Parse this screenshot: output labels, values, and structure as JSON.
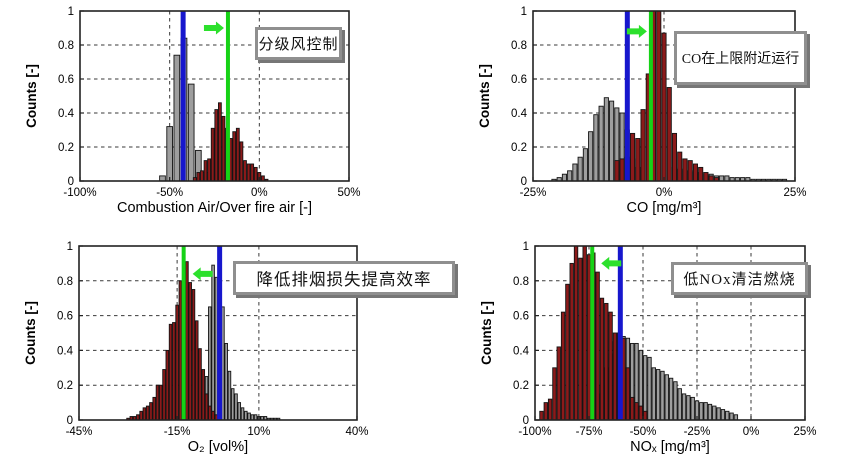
{
  "figure": {
    "background": "#ffffff",
    "description": "Four histograms comparing baseline and optimized boiler operation"
  },
  "colors": {
    "baseline_bar": "#9e9e9e",
    "optimized_bar": "#8c1a1a",
    "bar_edge": "#141414",
    "limit_line_blue": "#1717cd",
    "target_line_green": "#16d216",
    "arrow_green": "#2ce02c",
    "grid": "#3a3a3a",
    "axis": "#222222",
    "box_border": "#8f8f8f",
    "box_shadow": "#767676"
  },
  "chart_data": [
    {
      "id": "combustion-air",
      "type": "bar",
      "annotation": "分级风控制",
      "xlabel": "Combustion Air/Over fire air [-]",
      "ylabel": "Counts [-]",
      "xlim": [
        -100,
        50
      ],
      "ylim": [
        0,
        1
      ],
      "xticks": {
        "values": [
          -100,
          -50,
          0,
          50
        ],
        "labels": [
          "-100%",
          "-50%",
          "0%",
          "50%"
        ]
      },
      "yticks": {
        "values": [
          0,
          0.2,
          0.4,
          0.6,
          0.8,
          1
        ],
        "labels": [
          "0",
          "0.2",
          "0.4",
          "0.6",
          "0.8",
          "1"
        ]
      },
      "grid_x": [
        -50,
        0
      ],
      "grid_y": [
        0.2,
        0.4,
        0.6,
        0.8
      ],
      "lines": {
        "blue_x": -42.5,
        "green_x": -17.5
      },
      "arrow": {
        "direction": "right",
        "y_frac": 0.9
      },
      "series": [
        {
          "name": "baseline",
          "color_key": "baseline_bar",
          "bin_width": 4,
          "bars": [
            [
              -54,
              0.03
            ],
            [
              -50,
              0.32
            ],
            [
              -46,
              0.74
            ],
            [
              -42,
              0.84
            ],
            [
              -38,
              0.57
            ],
            [
              -34,
              0.18
            ],
            [
              -30,
              0.05
            ]
          ]
        },
        {
          "name": "optimized",
          "color_key": "optimized_bar",
          "bin_width": 2,
          "bars": [
            [
              -36,
              0.02
            ],
            [
              -34,
              0.05
            ],
            [
              -32,
              0.06
            ],
            [
              -30,
              0.12
            ],
            [
              -28,
              0.13
            ],
            [
              -26,
              0.31
            ],
            [
              -24,
              0.42
            ],
            [
              -22,
              0.46
            ],
            [
              -20,
              0.38
            ],
            [
              -18,
              0.31
            ],
            [
              -16,
              0.25
            ],
            [
              -14,
              0.29
            ],
            [
              -12,
              0.31
            ],
            [
              -10,
              0.23
            ],
            [
              -8,
              0.12
            ],
            [
              -6,
              0.1
            ],
            [
              -4,
              0.1
            ],
            [
              -2,
              0.08
            ],
            [
              0,
              0.05
            ],
            [
              2,
              0.03
            ],
            [
              4,
              0.01
            ]
          ]
        }
      ]
    },
    {
      "id": "co",
      "type": "bar",
      "annotation": "CO在上限附近运行",
      "xlabel": "CO [mg/m³]",
      "ylabel": "Counts [-]",
      "xlim": [
        -25,
        25
      ],
      "ylim": [
        0,
        1
      ],
      "xticks": {
        "values": [
          -25,
          0,
          25
        ],
        "labels": [
          "-25%",
          "0%",
          "25%"
        ]
      },
      "yticks": {
        "values": [
          0,
          0.2,
          0.4,
          0.6,
          0.8,
          1
        ],
        "labels": [
          "0",
          "0.2",
          "0.4",
          "0.6",
          "0.8",
          "1"
        ]
      },
      "grid_x": [
        0
      ],
      "grid_y": [
        0.2,
        0.4,
        0.6,
        0.8
      ],
      "lines": {
        "blue_x": -7,
        "green_x": -2.5
      },
      "arrow": {
        "direction": "right",
        "y_frac": 0.88
      },
      "series": [
        {
          "name": "baseline",
          "color_key": "baseline_bar",
          "bin_width": 1,
          "bars": [
            [
              -21,
              0.01
            ],
            [
              -20,
              0.02
            ],
            [
              -19,
              0.04
            ],
            [
              -18,
              0.06
            ],
            [
              -17,
              0.1
            ],
            [
              -16,
              0.14
            ],
            [
              -15,
              0.19
            ],
            [
              -14,
              0.29
            ],
            [
              -13,
              0.39
            ],
            [
              -12,
              0.44
            ],
            [
              -11,
              0.49
            ],
            [
              -10,
              0.47
            ],
            [
              -9,
              0.43
            ],
            [
              -8,
              0.4
            ],
            [
              -7,
              0.3
            ],
            [
              -6,
              0.13
            ],
            [
              -5,
              0.08
            ],
            [
              2,
              0.08
            ],
            [
              3,
              0.07
            ],
            [
              4,
              0.06
            ],
            [
              5,
              0.06
            ],
            [
              6,
              0.05
            ],
            [
              7,
              0.05
            ],
            [
              8,
              0.04
            ],
            [
              9,
              0.04
            ],
            [
              10,
              0.03
            ],
            [
              11,
              0.03
            ],
            [
              12,
              0.03
            ],
            [
              13,
              0.02
            ],
            [
              14,
              0.02
            ],
            [
              15,
              0.02
            ],
            [
              16,
              0.02
            ],
            [
              17,
              0.01
            ],
            [
              18,
              0.01
            ],
            [
              19,
              0.01
            ],
            [
              20,
              0.01
            ],
            [
              21,
              0.01
            ],
            [
              22,
              0.01
            ],
            [
              23,
              0.01
            ]
          ]
        },
        {
          "name": "optimized",
          "color_key": "optimized_bar",
          "bin_width": 1,
          "bars": [
            [
              -9,
              0.12
            ],
            [
              -8,
              0.13
            ],
            [
              -7,
              0.14
            ],
            [
              -6,
              0.28
            ],
            [
              -5,
              0.25
            ],
            [
              -4,
              0.42
            ],
            [
              -3,
              0.63
            ],
            [
              -2,
              1
            ],
            [
              -1,
              1
            ],
            [
              0,
              0.87
            ],
            [
              1,
              0.55
            ],
            [
              2,
              0.28
            ],
            [
              3,
              0.17
            ],
            [
              4,
              0.13
            ],
            [
              5,
              0.12
            ],
            [
              6,
              0.1
            ],
            [
              7,
              0.08
            ],
            [
              8,
              0.05
            ],
            [
              9,
              0.03
            ],
            [
              10,
              0.02
            ]
          ]
        }
      ]
    },
    {
      "id": "o2",
      "type": "bar",
      "annotation": "降低排烟损失提高效率",
      "xlabel": "O₂ [vol%]",
      "ylabel": "Counts [-]",
      "xlim": [
        -45,
        40
      ],
      "ylim": [
        0,
        1
      ],
      "xticks": {
        "values": [
          -45,
          -15,
          10,
          40
        ],
        "labels": [
          "-45%",
          "-15%",
          "10%",
          "40%"
        ]
      },
      "yticks": {
        "values": [
          0,
          0.2,
          0.4,
          0.6,
          0.8,
          1
        ],
        "labels": [
          "0",
          "0.2",
          "0.4",
          "0.6",
          "0.8",
          "1"
        ]
      },
      "grid_x": [
        -15,
        10
      ],
      "grid_y": [
        0.2,
        0.4,
        0.6,
        0.8
      ],
      "lines": {
        "blue_x": -2,
        "green_x": -13
      },
      "arrow": {
        "direction": "left",
        "y_frac": 0.84
      },
      "series": [
        {
          "name": "baseline",
          "color_key": "baseline_bar",
          "bin_width": 1,
          "bars": [
            [
              -8,
              0.1
            ],
            [
              -7,
              0.16
            ],
            [
              -6,
              0.25
            ],
            [
              -5,
              0.65
            ],
            [
              -4,
              0.89
            ],
            [
              -3,
              0.82
            ],
            [
              -2,
              0.82
            ],
            [
              -1,
              0.65
            ],
            [
              0,
              0.44
            ],
            [
              1,
              0.28
            ],
            [
              2,
              0.18
            ],
            [
              3,
              0.15
            ],
            [
              4,
              0.1
            ],
            [
              5,
              0.07
            ],
            [
              6,
              0.05
            ],
            [
              7,
              0.04
            ],
            [
              8,
              0.03
            ],
            [
              9,
              0.03
            ],
            [
              10,
              0.02
            ],
            [
              11,
              0.02
            ],
            [
              12,
              0.02
            ],
            [
              13,
              0.01
            ],
            [
              14,
              0.01
            ],
            [
              15,
              0.01
            ],
            [
              16,
              0.01
            ]
          ]
        },
        {
          "name": "optimized",
          "color_key": "optimized_bar",
          "bin_width": 1,
          "bars": [
            [
              -30,
              0.01
            ],
            [
              -29,
              0.02
            ],
            [
              -28,
              0.02
            ],
            [
              -27,
              0.03
            ],
            [
              -26,
              0.05
            ],
            [
              -25,
              0.07
            ],
            [
              -24,
              0.08
            ],
            [
              -23,
              0.1
            ],
            [
              -22,
              0.13
            ],
            [
              -21,
              0.2
            ],
            [
              -20,
              0.2
            ],
            [
              -19,
              0.29
            ],
            [
              -18,
              0.4
            ],
            [
              -17,
              0.55
            ],
            [
              -16,
              0.56
            ],
            [
              -15,
              0.66
            ],
            [
              -14,
              0.8
            ],
            [
              -13,
              0.8
            ],
            [
              -12,
              0.91
            ],
            [
              -11,
              0.79
            ],
            [
              -10,
              0.75
            ],
            [
              -9,
              0.57
            ],
            [
              -8,
              0.41
            ],
            [
              -7,
              0.29
            ],
            [
              -6,
              0.15
            ],
            [
              -5,
              0.08
            ],
            [
              -4,
              0.05
            ],
            [
              -3,
              0.03
            ],
            [
              -2,
              0.02
            ]
          ]
        }
      ]
    },
    {
      "id": "nox",
      "type": "bar",
      "annotation": "低NOx清洁燃烧",
      "xlabel": "NOₓ [mg/m³]",
      "ylabel": "Counts [-]",
      "xlim": [
        -100,
        25
      ],
      "ylim": [
        0,
        1
      ],
      "xticks": {
        "values": [
          -100,
          -75,
          -50,
          -25,
          0,
          25
        ],
        "labels": [
          "-100%",
          "-75%",
          "-50%",
          "-25%",
          "0%",
          "25%"
        ]
      },
      "yticks": {
        "values": [
          0,
          0.2,
          0.4,
          0.6,
          0.8,
          1
        ],
        "labels": [
          "0",
          "0.2",
          "0.4",
          "0.6",
          "0.8",
          "1"
        ]
      },
      "grid_x": [
        -75,
        -50,
        -25,
        0
      ],
      "grid_y": [
        0.2,
        0.4,
        0.6,
        0.8
      ],
      "lines": {
        "blue_x": -60.5,
        "green_x": -73.5
      },
      "arrow": {
        "direction": "left",
        "y_frac": 0.9
      },
      "series": [
        {
          "name": "baseline",
          "color_key": "baseline_bar",
          "bin_width": 2,
          "bars": [
            [
              -71,
              0.15
            ],
            [
              -69,
              0.2
            ],
            [
              -67,
              0.3
            ],
            [
              -65,
              0.38
            ],
            [
              -63,
              0.45
            ],
            [
              -61,
              0.5
            ],
            [
              -59,
              0.48
            ],
            [
              -57,
              0.47
            ],
            [
              -55,
              0.44
            ],
            [
              -53,
              0.44
            ],
            [
              -51,
              0.4
            ],
            [
              -49,
              0.37
            ],
            [
              -47,
              0.36
            ],
            [
              -45,
              0.3
            ],
            [
              -43,
              0.29
            ],
            [
              -41,
              0.28
            ],
            [
              -39,
              0.26
            ],
            [
              -37,
              0.24
            ],
            [
              -35,
              0.22
            ],
            [
              -33,
              0.18
            ],
            [
              -31,
              0.15
            ],
            [
              -29,
              0.14
            ],
            [
              -27,
              0.13
            ],
            [
              -25,
              0.11
            ],
            [
              -23,
              0.1
            ],
            [
              -21,
              0.1
            ],
            [
              -19,
              0.09
            ],
            [
              -17,
              0.08
            ],
            [
              -15,
              0.07
            ],
            [
              -13,
              0.06
            ],
            [
              -11,
              0.05
            ],
            [
              -9,
              0.04
            ],
            [
              -7,
              0.03
            ]
          ]
        },
        {
          "name": "optimized",
          "color_key": "optimized_bar",
          "bin_width": 2,
          "bars": [
            [
              -97,
              0.05
            ],
            [
              -95,
              0.1
            ],
            [
              -93,
              0.12
            ],
            [
              -91,
              0.3
            ],
            [
              -89,
              0.42
            ],
            [
              -87,
              0.62
            ],
            [
              -85,
              0.78
            ],
            [
              -83,
              0.9
            ],
            [
              -81,
              1
            ],
            [
              -79,
              0.93
            ],
            [
              -77,
              1
            ],
            [
              -75,
              0.95
            ],
            [
              -73,
              0.96
            ],
            [
              -71,
              0.85
            ],
            [
              -69,
              0.7
            ],
            [
              -67,
              0.67
            ],
            [
              -65,
              0.62
            ],
            [
              -63,
              0.5
            ],
            [
              -61,
              0.5
            ],
            [
              -59,
              0.47
            ],
            [
              -57,
              0.3
            ],
            [
              -55,
              0.13
            ],
            [
              -53,
              0.1
            ],
            [
              -51,
              0.08
            ],
            [
              -49,
              0.05
            ]
          ]
        }
      ]
    }
  ]
}
